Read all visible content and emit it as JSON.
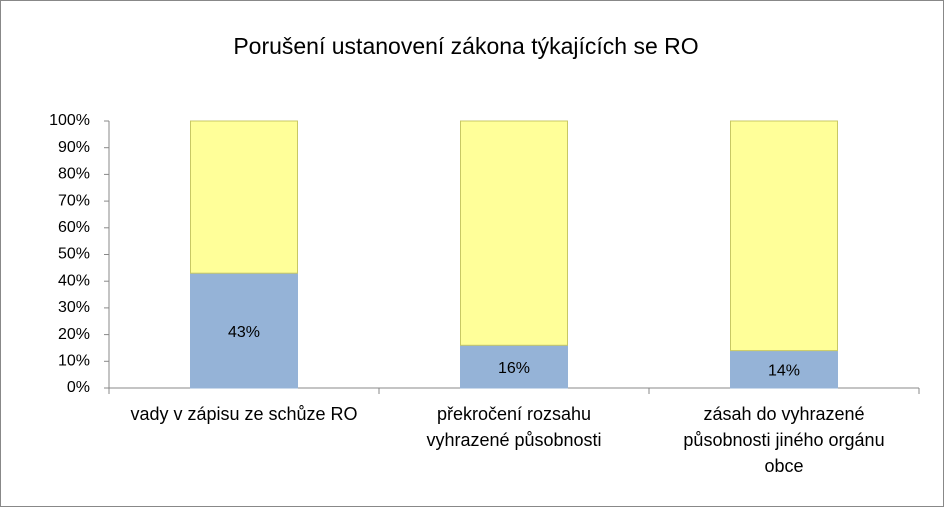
{
  "chart_data": {
    "type": "stacked_bar",
    "title": "Porušení ustanovení zákona týkajících se RO",
    "categories": [
      "vady v zápisu ze schůze RO",
      "překročení rozsahu vyhrazené působnosti",
      "zásah do vyhrazené působnosti jiného orgánu obce"
    ],
    "series": [
      {
        "color": "#95b3d7",
        "values": [
          43,
          16,
          14
        ],
        "value_labels": [
          "43%",
          "16%",
          "14%"
        ]
      },
      {
        "color": "#ffff99",
        "values": [
          57,
          84,
          86
        ]
      }
    ],
    "ylim": [
      0,
      100
    ],
    "yticks": [
      {
        "value": 0,
        "label": "0%"
      },
      {
        "value": 10,
        "label": "10%"
      },
      {
        "value": 20,
        "label": "20%"
      },
      {
        "value": 30,
        "label": "30%"
      },
      {
        "value": 40,
        "label": "40%"
      },
      {
        "value": 50,
        "label": "50%"
      },
      {
        "value": 60,
        "label": "60%"
      },
      {
        "value": 70,
        "label": "70%"
      },
      {
        "value": 80,
        "label": "80%"
      },
      {
        "value": 90,
        "label": "90%"
      },
      {
        "value": 100,
        "label": "100%"
      }
    ],
    "grid": false
  }
}
